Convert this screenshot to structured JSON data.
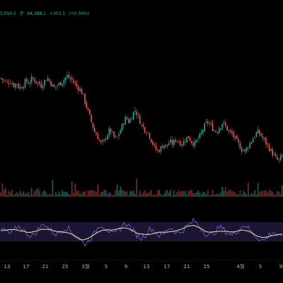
{
  "legend": {
    "open_value": "5,050.5",
    "close_prefix": "종",
    "close_value": "84,388.1",
    "change": "+303.5",
    "change_pct": "(+0.36%)"
  },
  "colors": {
    "background": "#000000",
    "up": "#26a69a",
    "down": "#ef5350",
    "rsi_line": "#7e57c2",
    "rsi_ma": "#f5e6a3",
    "rsi_band": "#1a1533",
    "grid": "#111111",
    "axis_text": "#b2b5be"
  },
  "x_axis": {
    "ticks": [
      "13",
      "17",
      "21",
      "25",
      "3월",
      "5",
      "9",
      "13",
      "17",
      "21",
      "25",
      "4월",
      "5",
      "9"
    ]
  },
  "chart_data": {
    "type": "candlestick",
    "price_path": [
      74,
      73,
      72,
      73,
      71,
      72,
      70,
      71,
      73,
      72,
      74,
      73,
      72,
      71,
      73,
      74,
      72,
      70,
      71,
      72,
      73,
      75,
      74,
      73,
      71,
      70,
      68,
      64,
      60,
      56,
      52,
      50,
      47,
      48,
      51,
      53,
      50,
      49,
      52,
      55,
      58,
      56,
      59,
      61,
      58,
      55,
      53,
      52,
      49,
      46,
      44,
      45,
      47,
      46,
      48,
      47,
      49,
      48,
      47,
      49,
      50,
      48,
      47,
      49,
      51,
      54,
      56,
      55,
      53,
      52,
      54,
      56,
      54,
      52,
      51,
      49,
      47,
      45,
      44,
      46,
      48,
      50,
      52,
      51,
      49,
      47,
      45,
      43,
      41,
      40,
      42
    ],
    "rsi_path": [
      52,
      55,
      48,
      45,
      50,
      58,
      62,
      55,
      48,
      44,
      40,
      46,
      55,
      62,
      68,
      60,
      52,
      48,
      44,
      50,
      56,
      60,
      54,
      46,
      40,
      34,
      28,
      24,
      30,
      38,
      46,
      58,
      66,
      62,
      56,
      48,
      42,
      48,
      56,
      64,
      70,
      62,
      54,
      46,
      40,
      36,
      42,
      50,
      58,
      52,
      46,
      40,
      44,
      52,
      60,
      56,
      50,
      46,
      52,
      58,
      64,
      70,
      74,
      66,
      58,
      50,
      44,
      40,
      46,
      54,
      60,
      56,
      50,
      46,
      42,
      48,
      54,
      60,
      66,
      58,
      50,
      44,
      38,
      34,
      30,
      36,
      44,
      50,
      46,
      40,
      36
    ],
    "rsi_levels": {
      "upper": 70,
      "lower": 30
    }
  }
}
